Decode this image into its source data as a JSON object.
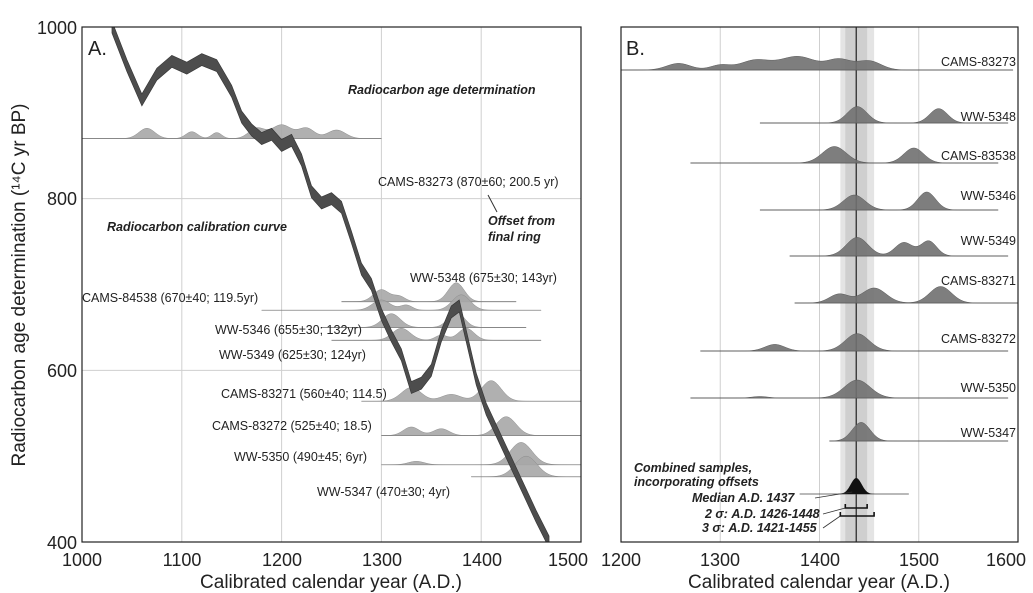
{
  "colors": {
    "curve": "#4d4d4d",
    "dist_dark": "#707070",
    "dist_light": "#a7a7a7",
    "band_2sigma": "#cfcfcf",
    "band_3sigma": "#e4e4e4",
    "combined": "#111111"
  },
  "chart_data": [
    {
      "type": "area",
      "panel_label": "A.",
      "xlabel": "Calibrated calendar year (A.D.)",
      "ylabel": "Radiocarbon age determination (¹⁴C yr BP)",
      "xlim": [
        1000,
        1500
      ],
      "ylim": [
        400,
        1000
      ],
      "xticks": [
        "1000",
        "1100",
        "1200",
        "1300",
        "1400",
        "1500"
      ],
      "yticks": [
        "400",
        "600",
        "800",
        "1000"
      ],
      "grid": true,
      "calibration_curve": {
        "label": "Radiocarbon calibration curve",
        "x": [
          1030,
          1045,
          1060,
          1075,
          1090,
          1105,
          1120,
          1135,
          1150,
          1160,
          1170,
          1180,
          1190,
          1200,
          1210,
          1220,
          1230,
          1240,
          1250,
          1260,
          1270,
          1280,
          1290,
          1300,
          1310,
          1320,
          1330,
          1340,
          1350,
          1360,
          1370,
          1378,
          1385,
          1395,
          1405,
          1415,
          1425,
          1435,
          1445,
          1455,
          1468
        ],
        "y": [
          1000,
          955,
          915,
          945,
          960,
          952,
          962,
          955,
          925,
          895,
          880,
          870,
          875,
          862,
          868,
          845,
          808,
          795,
          800,
          790,
          755,
          718,
          700,
          665,
          640,
          618,
          580,
          585,
          600,
          640,
          668,
          675,
          640,
          590,
          555,
          530,
          505,
          480,
          455,
          430,
          400
        ],
        "width": 14
      },
      "samples": [
        {
          "label": "CAMS-83273 (870±60; 200.5 yr)",
          "baseline": 870,
          "shade": "light",
          "xmin": 1000,
          "xmax": 1300,
          "peaks": [
            [
              1065,
              12,
              8
            ],
            [
              1110,
              8,
              6
            ],
            [
              1135,
              7,
              5
            ],
            [
              1175,
              12,
              8
            ],
            [
              1200,
              16,
              10
            ],
            [
              1225,
              12,
              8
            ],
            [
              1255,
              10,
              9
            ]
          ]
        },
        {
          "label": "WW-5348 (675±30; 143yr)",
          "baseline": 680,
          "shade": "light",
          "xmin": 1260,
          "xmax": 1435,
          "peaks": [
            [
              1300,
              14,
              8
            ],
            [
              1318,
              6,
              6
            ],
            [
              1375,
              22,
              8
            ]
          ]
        },
        {
          "label": "CAMS-84538 (670±40; 119.5yr)",
          "baseline": 670,
          "shade": "light",
          "xmin": 1180,
          "xmax": 1460,
          "peaks": [
            [
              1300,
              12,
              9
            ],
            [
              1325,
              6,
              6
            ],
            [
              1380,
              18,
              9
            ]
          ]
        },
        {
          "label": "WW-5346 (655±30; 132yr)",
          "baseline": 650,
          "shade": "light",
          "xmin": 1240,
          "xmax": 1445,
          "peaks": [
            [
              1310,
              16,
              9
            ],
            [
              1375,
              18,
              8
            ]
          ]
        },
        {
          "label": "WW-5349 (625±30; 124yr)",
          "baseline": 635,
          "shade": "light",
          "xmin": 1250,
          "xmax": 1460,
          "peaks": [
            [
              1320,
              14,
              9
            ],
            [
              1360,
              6,
              6
            ],
            [
              1385,
              14,
              8
            ]
          ]
        },
        {
          "label": "CAMS-83271 (560±40; 114.5)",
          "baseline": 564,
          "shade": "light",
          "xmin": 1280,
          "xmax": 1500,
          "peaks": [
            [
              1330,
              16,
              10
            ],
            [
              1370,
              8,
              10
            ],
            [
              1410,
              24,
              10
            ]
          ]
        },
        {
          "label": "CAMS-83272 (525±40; 18.5)",
          "baseline": 524,
          "shade": "light",
          "xmin": 1300,
          "xmax": 1500,
          "peaks": [
            [
              1330,
              10,
              8
            ],
            [
              1360,
              8,
              8
            ],
            [
              1425,
              22,
              10
            ]
          ]
        },
        {
          "label": "WW-5350 (490±45; 6yr)",
          "baseline": 490,
          "shade": "light",
          "xmin": 1300,
          "xmax": 1500,
          "peaks": [
            [
              1335,
              4,
              8
            ],
            [
              1440,
              26,
              11
            ]
          ]
        },
        {
          "label": "WW-5347 (470±30; 4yr)",
          "baseline": 476,
          "shade": "light",
          "xmin": 1390,
          "xmax": 1500,
          "peaks": [
            [
              1445,
              24,
              11
            ]
          ]
        }
      ],
      "annotations": [
        {
          "text": "Radiocarbon age determination"
        },
        {
          "text": "Offset from"
        },
        {
          "text": "final ring"
        }
      ]
    },
    {
      "type": "area",
      "panel_label": "B.",
      "xlabel": "Calibrated calendar year (A.D.)",
      "xlim": [
        1200,
        1600
      ],
      "xticks": [
        "1200",
        "1300",
        "1400",
        "1500",
        "1600"
      ],
      "grid": true,
      "median_year": 1437,
      "sigma2": [
        1426,
        1448
      ],
      "sigma3": [
        1421,
        1455
      ],
      "samples": [
        {
          "label": "CAMS-83273",
          "xmin": 1200,
          "xmax": 1595,
          "peaks": [
            [
              1258,
              0.22,
              12
            ],
            [
              1300,
              0.16,
              10
            ],
            [
              1335,
              0.32,
              15
            ],
            [
              1378,
              0.45,
              18
            ],
            [
              1420,
              0.34,
              12
            ],
            [
              1450,
              0.3,
              12
            ]
          ]
        },
        {
          "label": "WW-5348",
          "xmin": 1340,
          "xmax": 1590,
          "peaks": [
            [
              1438,
              0.55,
              10
            ],
            [
              1520,
              0.48,
              9
            ]
          ]
        },
        {
          "label": "CAMS-83538",
          "xmin": 1270,
          "xmax": 1580,
          "peaks": [
            [
              1415,
              0.55,
              12
            ],
            [
              1495,
              0.5,
              10
            ]
          ]
        },
        {
          "label": "WW-5346",
          "xmin": 1340,
          "xmax": 1580,
          "peaks": [
            [
              1435,
              0.5,
              11
            ],
            [
              1508,
              0.6,
              9
            ]
          ]
        },
        {
          "label": "WW-5349",
          "xmin": 1370,
          "xmax": 1590,
          "peaks": [
            [
              1438,
              0.62,
              11
            ],
            [
              1485,
              0.45,
              9
            ],
            [
              1510,
              0.5,
              8
            ]
          ]
        },
        {
          "label": "CAMS-83271",
          "xmin": 1375,
          "xmax": 1600,
          "peaks": [
            [
              1420,
              0.3,
              10
            ],
            [
              1455,
              0.5,
              12
            ],
            [
              1522,
              0.55,
              11
            ]
          ]
        },
        {
          "label": "CAMS-83272",
          "xmin": 1280,
          "xmax": 1590,
          "peaks": [
            [
              1355,
              0.22,
              10
            ],
            [
              1438,
              0.58,
              12
            ]
          ]
        },
        {
          "label": "WW-5350",
          "xmin": 1270,
          "xmax": 1590,
          "peaks": [
            [
              1340,
              0.05,
              8
            ],
            [
              1438,
              0.6,
              13
            ]
          ]
        },
        {
          "label": "WW-5347",
          "xmin": 1410,
          "xmax": 1590,
          "peaks": [
            [
              1442,
              0.62,
              9
            ]
          ]
        }
      ],
      "annotations": [
        {
          "text": "Combined samples,"
        },
        {
          "text": "incorporating offsets"
        },
        {
          "text": "Median A.D. 1437"
        },
        {
          "text": "2 σ: A.D. 1426-1448"
        },
        {
          "text": "3 σ: A.D. 1421-1455"
        }
      ]
    }
  ]
}
